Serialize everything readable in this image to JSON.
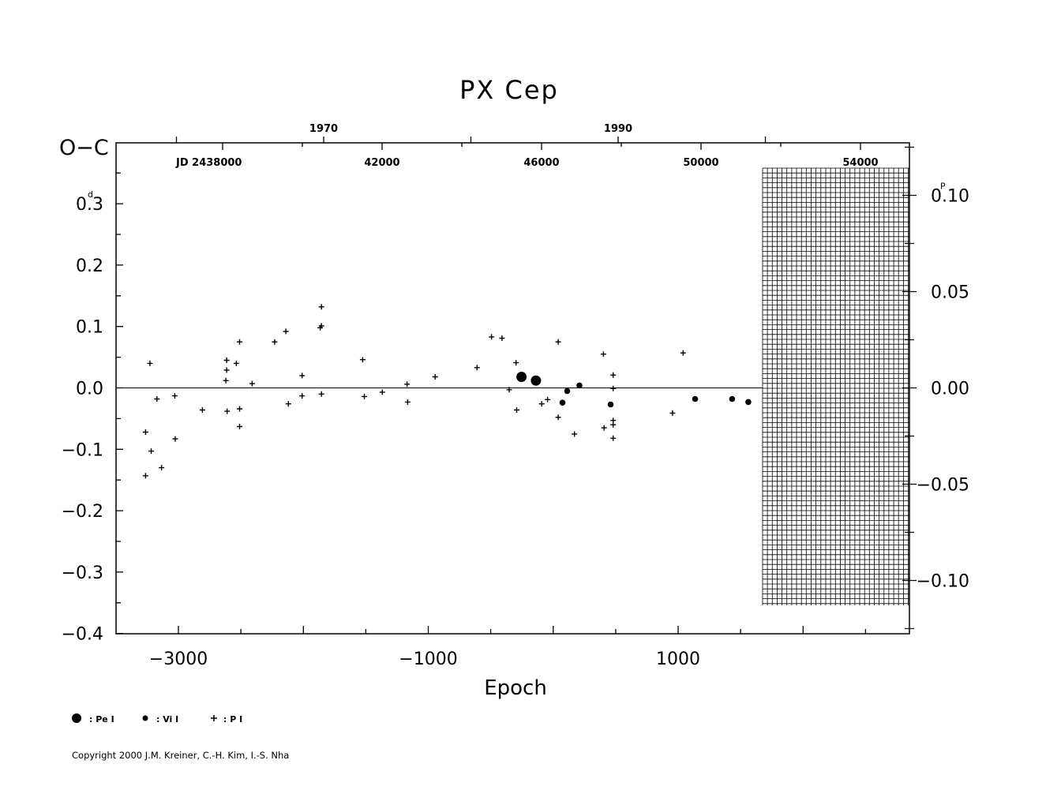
{
  "chart_data": {
    "type": "scatter",
    "title": "PX Cep",
    "xlabel": "Epoch",
    "ylabel": "O−C",
    "ylabel_unit": "d",
    "right_axis_unit": "P",
    "xlim": [
      -3500,
      2800
    ],
    "ylim": [
      -0.4,
      0.4
    ],
    "x_ticks": [
      "−3000",
      "−1000",
      "1000"
    ],
    "y_ticks": [
      "0.3",
      "0.2",
      "0.1",
      "0.0",
      "−0.1",
      "−0.2",
      "−0.3",
      "−0.4"
    ],
    "right_ticks": [
      "0.10",
      "0.05",
      "0.00",
      "−0.05",
      "−0.10"
    ],
    "jd_prefix": "JD 2438000",
    "jd_ticks": [
      "42000",
      "46000",
      "50000",
      "54000"
    ],
    "year_ticks": [
      "1970",
      "1990"
    ],
    "series": [
      {
        "name": "Pe I",
        "marker": "large-dot",
        "points": [
          [
            -254,
            0.018
          ],
          [
            -138,
            0.012
          ]
        ]
      },
      {
        "name": "Vi I",
        "marker": "dot",
        "points": [
          [
            74,
            -0.024
          ],
          [
            112,
            -0.005
          ],
          [
            210,
            0.004
          ],
          [
            460,
            -0.027
          ],
          [
            1136,
            -0.018
          ],
          [
            1432,
            -0.018
          ],
          [
            1562,
            -0.023
          ]
        ]
      },
      {
        "name": "P I",
        "marker": "plus",
        "points": [
          [
            -3263,
            -0.072
          ],
          [
            -3263,
            -0.143
          ],
          [
            -3228,
            0.04
          ],
          [
            -3218,
            -0.103
          ],
          [
            -3172,
            -0.018
          ],
          [
            -3135,
            -0.13
          ],
          [
            -3029,
            -0.013
          ],
          [
            -3025,
            -0.083
          ],
          [
            -2808,
            -0.036
          ],
          [
            -2620,
            0.012
          ],
          [
            -2614,
            0.045
          ],
          [
            -2614,
            0.029
          ],
          [
            -2610,
            -0.038
          ],
          [
            -2536,
            0.04
          ],
          [
            -2510,
            0.075
          ],
          [
            -2510,
            -0.034
          ],
          [
            -2510,
            -0.063
          ],
          [
            -2410,
            0.007
          ],
          [
            -2230,
            0.075
          ],
          [
            -2140,
            0.092
          ],
          [
            -2120,
            -0.026
          ],
          [
            -2010,
            0.02
          ],
          [
            -2010,
            -0.013
          ],
          [
            -1865,
            0.098
          ],
          [
            -1855,
            0.101
          ],
          [
            -1855,
            0.132
          ],
          [
            -1855,
            -0.01
          ],
          [
            -1525,
            0.046
          ],
          [
            -1512,
            -0.014
          ],
          [
            -1368,
            -0.007
          ],
          [
            -1170,
            0.006
          ],
          [
            -1165,
            -0.023
          ],
          [
            -945,
            0.018
          ],
          [
            -610,
            0.033
          ],
          [
            -494,
            0.083
          ],
          [
            -410,
            0.081
          ],
          [
            -352,
            -0.003
          ],
          [
            -297,
            0.041
          ],
          [
            -292,
            -0.036
          ],
          [
            -92,
            -0.026
          ],
          [
            -45,
            -0.019
          ],
          [
            40,
            0.075
          ],
          [
            40,
            -0.048
          ],
          [
            170,
            -0.075
          ],
          [
            402,
            0.055
          ],
          [
            407,
            -0.065
          ],
          [
            480,
            0.021
          ],
          [
            480,
            -0.001
          ],
          [
            480,
            -0.053
          ],
          [
            480,
            -0.06
          ],
          [
            480,
            -0.082
          ],
          [
            955,
            -0.041
          ],
          [
            1040,
            0.057
          ]
        ]
      }
    ],
    "legend": [
      {
        "label": ": Pe I",
        "marker": "large-dot"
      },
      {
        "label": ": Vi I",
        "marker": "dot"
      },
      {
        "label": ": P I",
        "marker": "plus"
      }
    ],
    "legend_position": "bottom-left",
    "grid": false,
    "hatched_region": true
  },
  "copyright": "Copyright 2000 J.M. Kreiner, C.-H. Kim, I.-S. Nha"
}
